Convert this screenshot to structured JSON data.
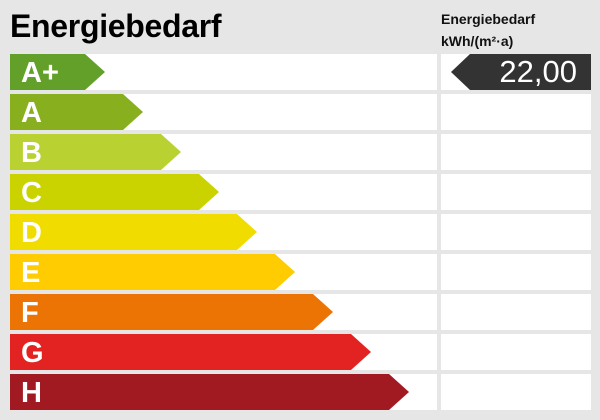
{
  "header": {
    "title": "Energiebedarf",
    "unit_line1": "Energiebedarf",
    "unit_line2": "kWh/(m²·a)"
  },
  "classes": [
    {
      "label": "A+",
      "color": "#62a02a"
    },
    {
      "label": "A",
      "color": "#88b01e"
    },
    {
      "label": "B",
      "color": "#b9d232"
    },
    {
      "label": "C",
      "color": "#cad300"
    },
    {
      "label": "D",
      "color": "#f1dc00"
    },
    {
      "label": "E",
      "color": "#fecc00"
    },
    {
      "label": "F",
      "color": "#ec7405"
    },
    {
      "label": "G",
      "color": "#e32322"
    },
    {
      "label": "H",
      "color": "#a11a22"
    }
  ],
  "indicator": {
    "value": "22,00",
    "class": "A+",
    "color": "#333333"
  }
}
